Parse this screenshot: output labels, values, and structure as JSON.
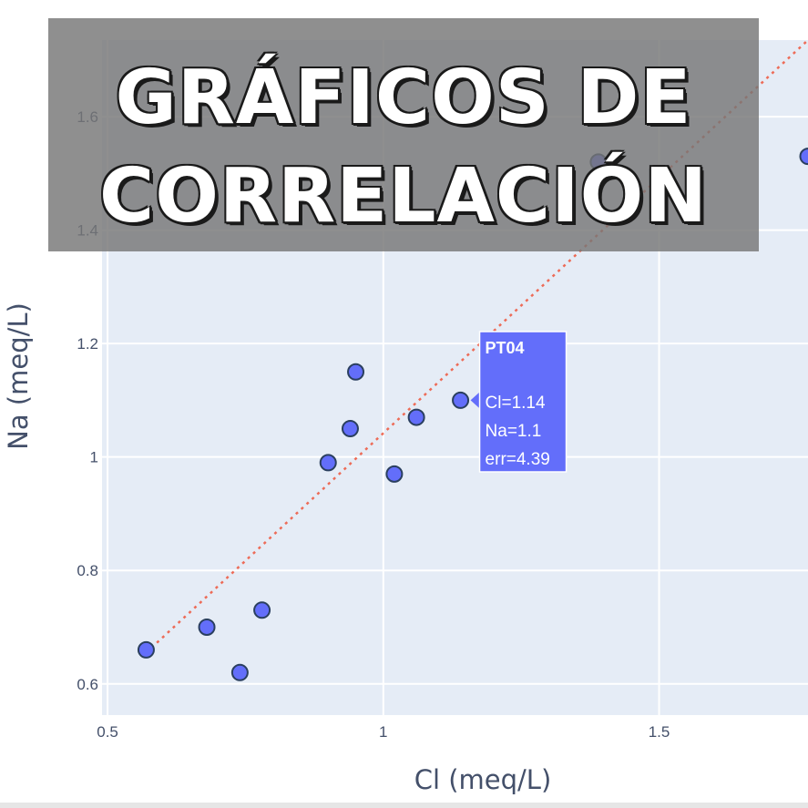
{
  "banner": {
    "line1": "GRÁFICOS DE",
    "line2": "CORRELACIÓN"
  },
  "colors": {
    "plot_bg": "#e5ecf6",
    "marker": "#636efa",
    "trendline": "#ef553b",
    "tooltip": "#636efa"
  },
  "chart_data": {
    "type": "scatter",
    "xlabel": "Cl (meq/L)",
    "ylabel": "Na (meq/L)",
    "xlim": [
      0.49,
      1.77
    ],
    "ylim": [
      0.545,
      1.735
    ],
    "xticks": [
      0.5,
      1,
      1.5
    ],
    "xtick_labels": [
      "0.5",
      "1",
      "1.5"
    ],
    "yticks": [
      0.6,
      0.8,
      1,
      1.2,
      1.4,
      1.6
    ],
    "ytick_labels": [
      "0.6",
      "0.8",
      "1",
      "1.2",
      "1.4",
      "1.6"
    ],
    "grid": true,
    "points": [
      {
        "x": 0.57,
        "y": 0.66
      },
      {
        "x": 0.68,
        "y": 0.7
      },
      {
        "x": 0.74,
        "y": 0.62
      },
      {
        "x": 0.78,
        "y": 0.73
      },
      {
        "x": 0.9,
        "y": 0.99
      },
      {
        "x": 0.94,
        "y": 1.05
      },
      {
        "x": 0.95,
        "y": 1.15
      },
      {
        "x": 1.02,
        "y": 0.97
      },
      {
        "x": 1.06,
        "y": 1.07
      },
      {
        "x": 1.14,
        "y": 1.1
      },
      {
        "x": 1.39,
        "y": 1.52
      },
      {
        "x": 1.77,
        "y": 1.53
      }
    ],
    "trendline": {
      "x": [
        0.57,
        1.77
      ],
      "y": [
        0.655,
        1.735
      ]
    },
    "tooltip": {
      "title": "PT04",
      "lines": [
        "Cl=1.14",
        "Na=1.1",
        "err=4.39"
      ],
      "point_index": 9
    }
  }
}
